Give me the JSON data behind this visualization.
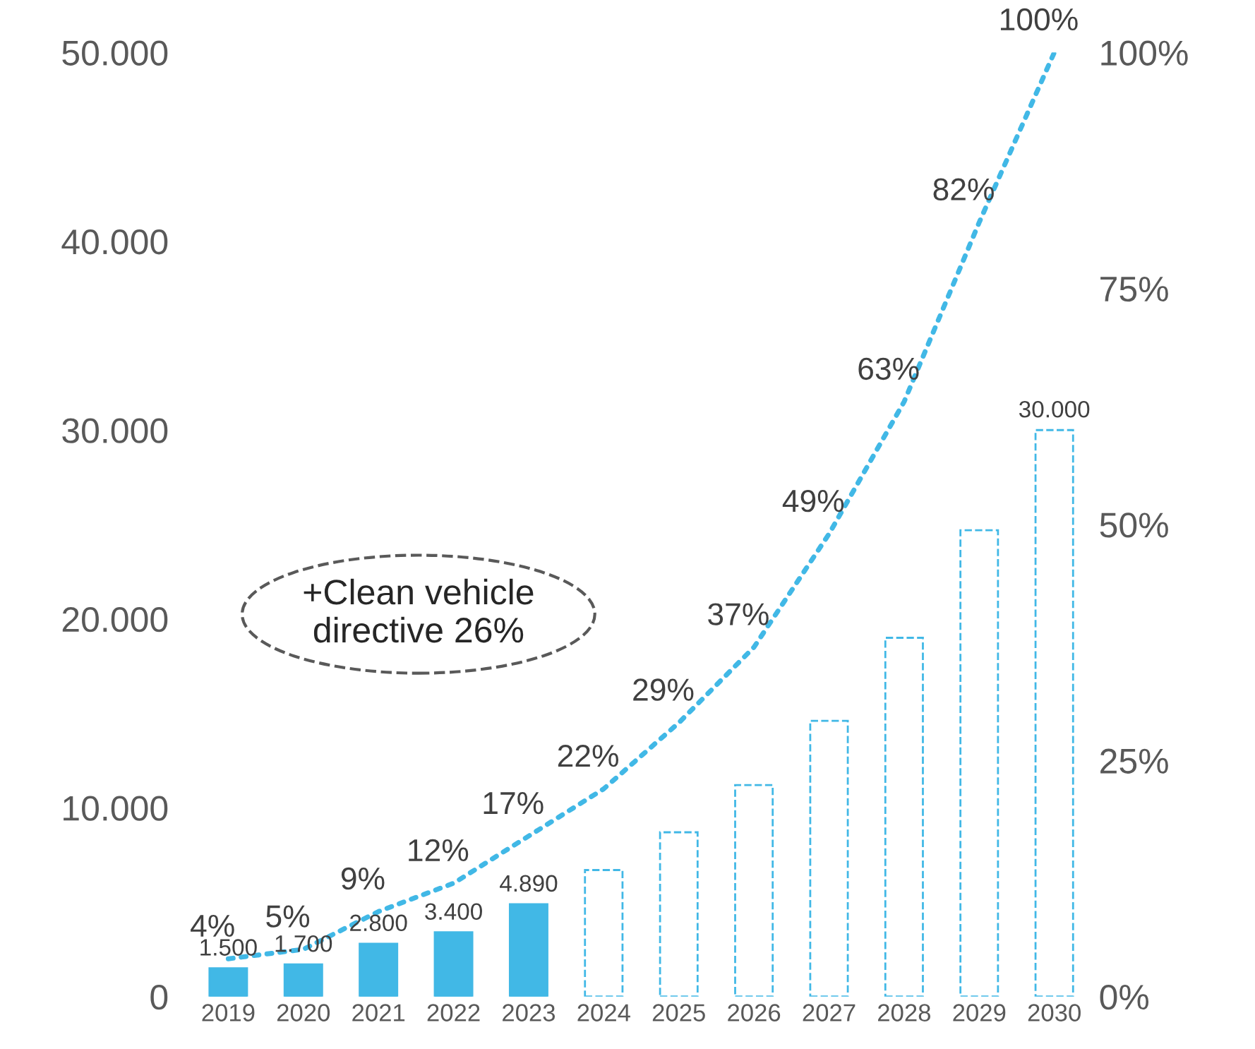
{
  "chart_data": {
    "type": "bar",
    "categories": [
      "2019",
      "2020",
      "2021",
      "2022",
      "2023",
      "2024",
      "2025",
      "2026",
      "2027",
      "2028",
      "2029",
      "2030"
    ],
    "series": [
      {
        "color": "#41b8e6",
        "line_style": "solid",
        "values": [
          1500,
          1700,
          2800,
          3400,
          4890,
          null,
          null,
          null,
          null,
          null,
          null,
          null
        ],
        "value_labels": [
          "1.500",
          "1.700",
          "2.800",
          "3.400",
          "4.890",
          null,
          null,
          null,
          null,
          null,
          null,
          null
        ]
      },
      {
        "color": "#41b8e6",
        "line_style": "dashed",
        "values": [
          null,
          null,
          null,
          null,
          null,
          6700,
          8700,
          11200,
          14600,
          19000,
          24700,
          30000
        ],
        "value_labels": [
          null,
          null,
          null,
          null,
          null,
          null,
          null,
          null,
          null,
          null,
          null,
          "30.000"
        ]
      },
      {
        "type": "line",
        "axis": "y2",
        "color": "#41b8e6",
        "line_style": "dotted",
        "marker": "none",
        "values": [
          4,
          5,
          9,
          12,
          17,
          22,
          29,
          37,
          49,
          63,
          82,
          100
        ],
        "value_labels": [
          "4%",
          "5%",
          "9%",
          "12%",
          "17%",
          "22%",
          "29%",
          "37%",
          "49%",
          "63%",
          "82%",
          "100%"
        ]
      }
    ],
    "ylim": [
      0,
      50000
    ],
    "yticks": [
      0,
      {
        "value": 10000,
        "label": "10.000"
      },
      {
        "value": 20000,
        "label": "20.000"
      },
      {
        "value": 30000,
        "label": "30.000"
      },
      {
        "value": 40000,
        "label": "40.000"
      },
      {
        "value": 50000,
        "label": "50.000"
      }
    ],
    "y2lim": [
      0,
      100
    ],
    "y2ticks": [
      {
        "value": 0,
        "label": "0%"
      },
      {
        "value": 25,
        "label": "25%"
      },
      {
        "value": 50,
        "label": "50%"
      },
      {
        "value": 75,
        "label": "75%"
      },
      {
        "value": 100,
        "label": "100%"
      }
    ],
    "grid": false,
    "annotations": [
      "+Clean vehicle\ndirective 26%"
    ]
  }
}
